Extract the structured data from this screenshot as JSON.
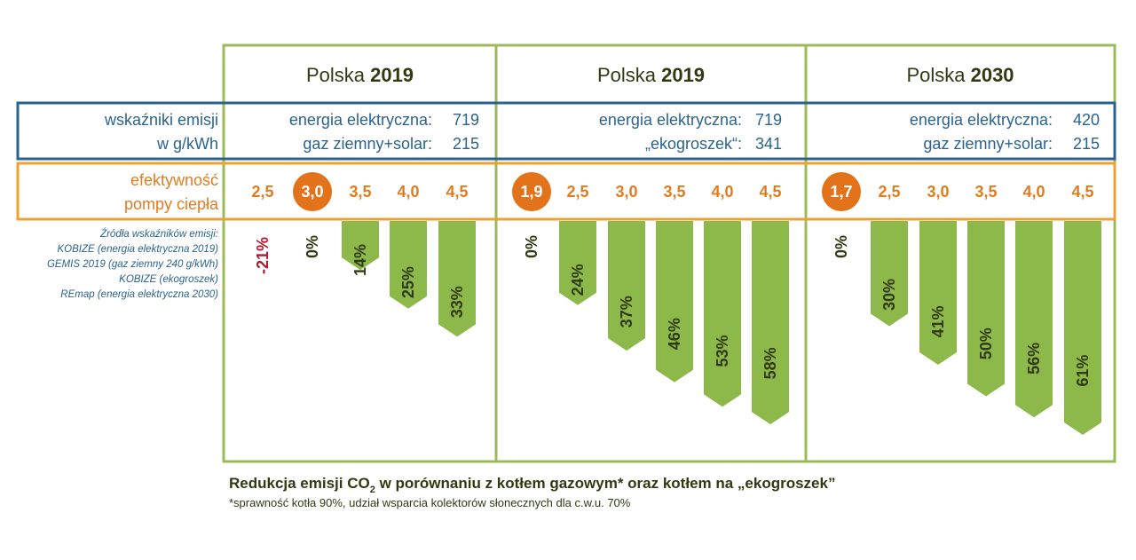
{
  "colors": {
    "panel_border": "#9bbb59",
    "bar": "#8db84a",
    "emission_box": "#2a6390",
    "efficiency_box": "#f0a030",
    "efficiency_text": "#e17c1e",
    "highlight_circle": "#e2731a",
    "negative": "#b0182f",
    "text": "#2f3a12"
  },
  "row_labels": {
    "emission_line1": "wskaźniki emisji",
    "emission_line2": "w g/kWh",
    "efficiency_line1": "efektywność",
    "efficiency_line2": "pompy ciepła"
  },
  "sources": [
    "Źródła wskaźników emisji:",
    "KOBIZE (energia elektryczna 2019)",
    "GEMIS 2019 (gaz ziemny 240 g/kWh)",
    "KOBIZE (ekogroszek)",
    "REmap (energia elektryczna 2030)"
  ],
  "caption": {
    "main_before": "Redukcja emisji CO",
    "sub": "2",
    "main_after": " w porównaniu z kotłem gazowym* oraz kotłem na „ekogroszek”",
    "footnote": "*sprawność kotła 90%, udział wsparcia kolektorów słonecznych dla c.w.u. 70%"
  },
  "chart_data": [
    {
      "type": "bar",
      "title_plain": "Polska ",
      "title_bold": "2019",
      "emissions": [
        {
          "label": "energia elektryczna:",
          "value": "719"
        },
        {
          "label": "gaz ziemny+solar:",
          "value": "215"
        }
      ],
      "categories": [
        "2,5",
        "3,0",
        "3,5",
        "4,0",
        "4,5"
      ],
      "highlight": "3,0",
      "values": [
        -21,
        0,
        14,
        25,
        33
      ],
      "value_labels": [
        "-21%",
        "0%",
        "14%",
        "25%",
        "33%"
      ]
    },
    {
      "type": "bar",
      "title_plain": "Polska ",
      "title_bold": "2019",
      "emissions": [
        {
          "label": "energia elektryczna:",
          "value": "719"
        },
        {
          "label": "„ekogroszek“:",
          "value": "341"
        }
      ],
      "categories": [
        "1,9",
        "2,5",
        "3,0",
        "3,5",
        "4,0",
        "4,5"
      ],
      "highlight": "1,9",
      "values": [
        0,
        24,
        37,
        46,
        53,
        58
      ],
      "value_labels": [
        "0%",
        "24%",
        "37%",
        "46%",
        "53%",
        "58%"
      ]
    },
    {
      "type": "bar",
      "title_plain": "Polska ",
      "title_bold": "2030",
      "emissions": [
        {
          "label": "energia elektryczna:",
          "value": "420"
        },
        {
          "label": "gaz ziemny+solar:",
          "value": "215"
        }
      ],
      "categories": [
        "1,7",
        "2,5",
        "3,0",
        "3,5",
        "4,0",
        "4,5"
      ],
      "highlight": "1,7",
      "values": [
        0,
        30,
        41,
        50,
        56,
        61
      ],
      "value_labels": [
        "0%",
        "30%",
        "41%",
        "50%",
        "56%",
        "61%"
      ]
    }
  ]
}
